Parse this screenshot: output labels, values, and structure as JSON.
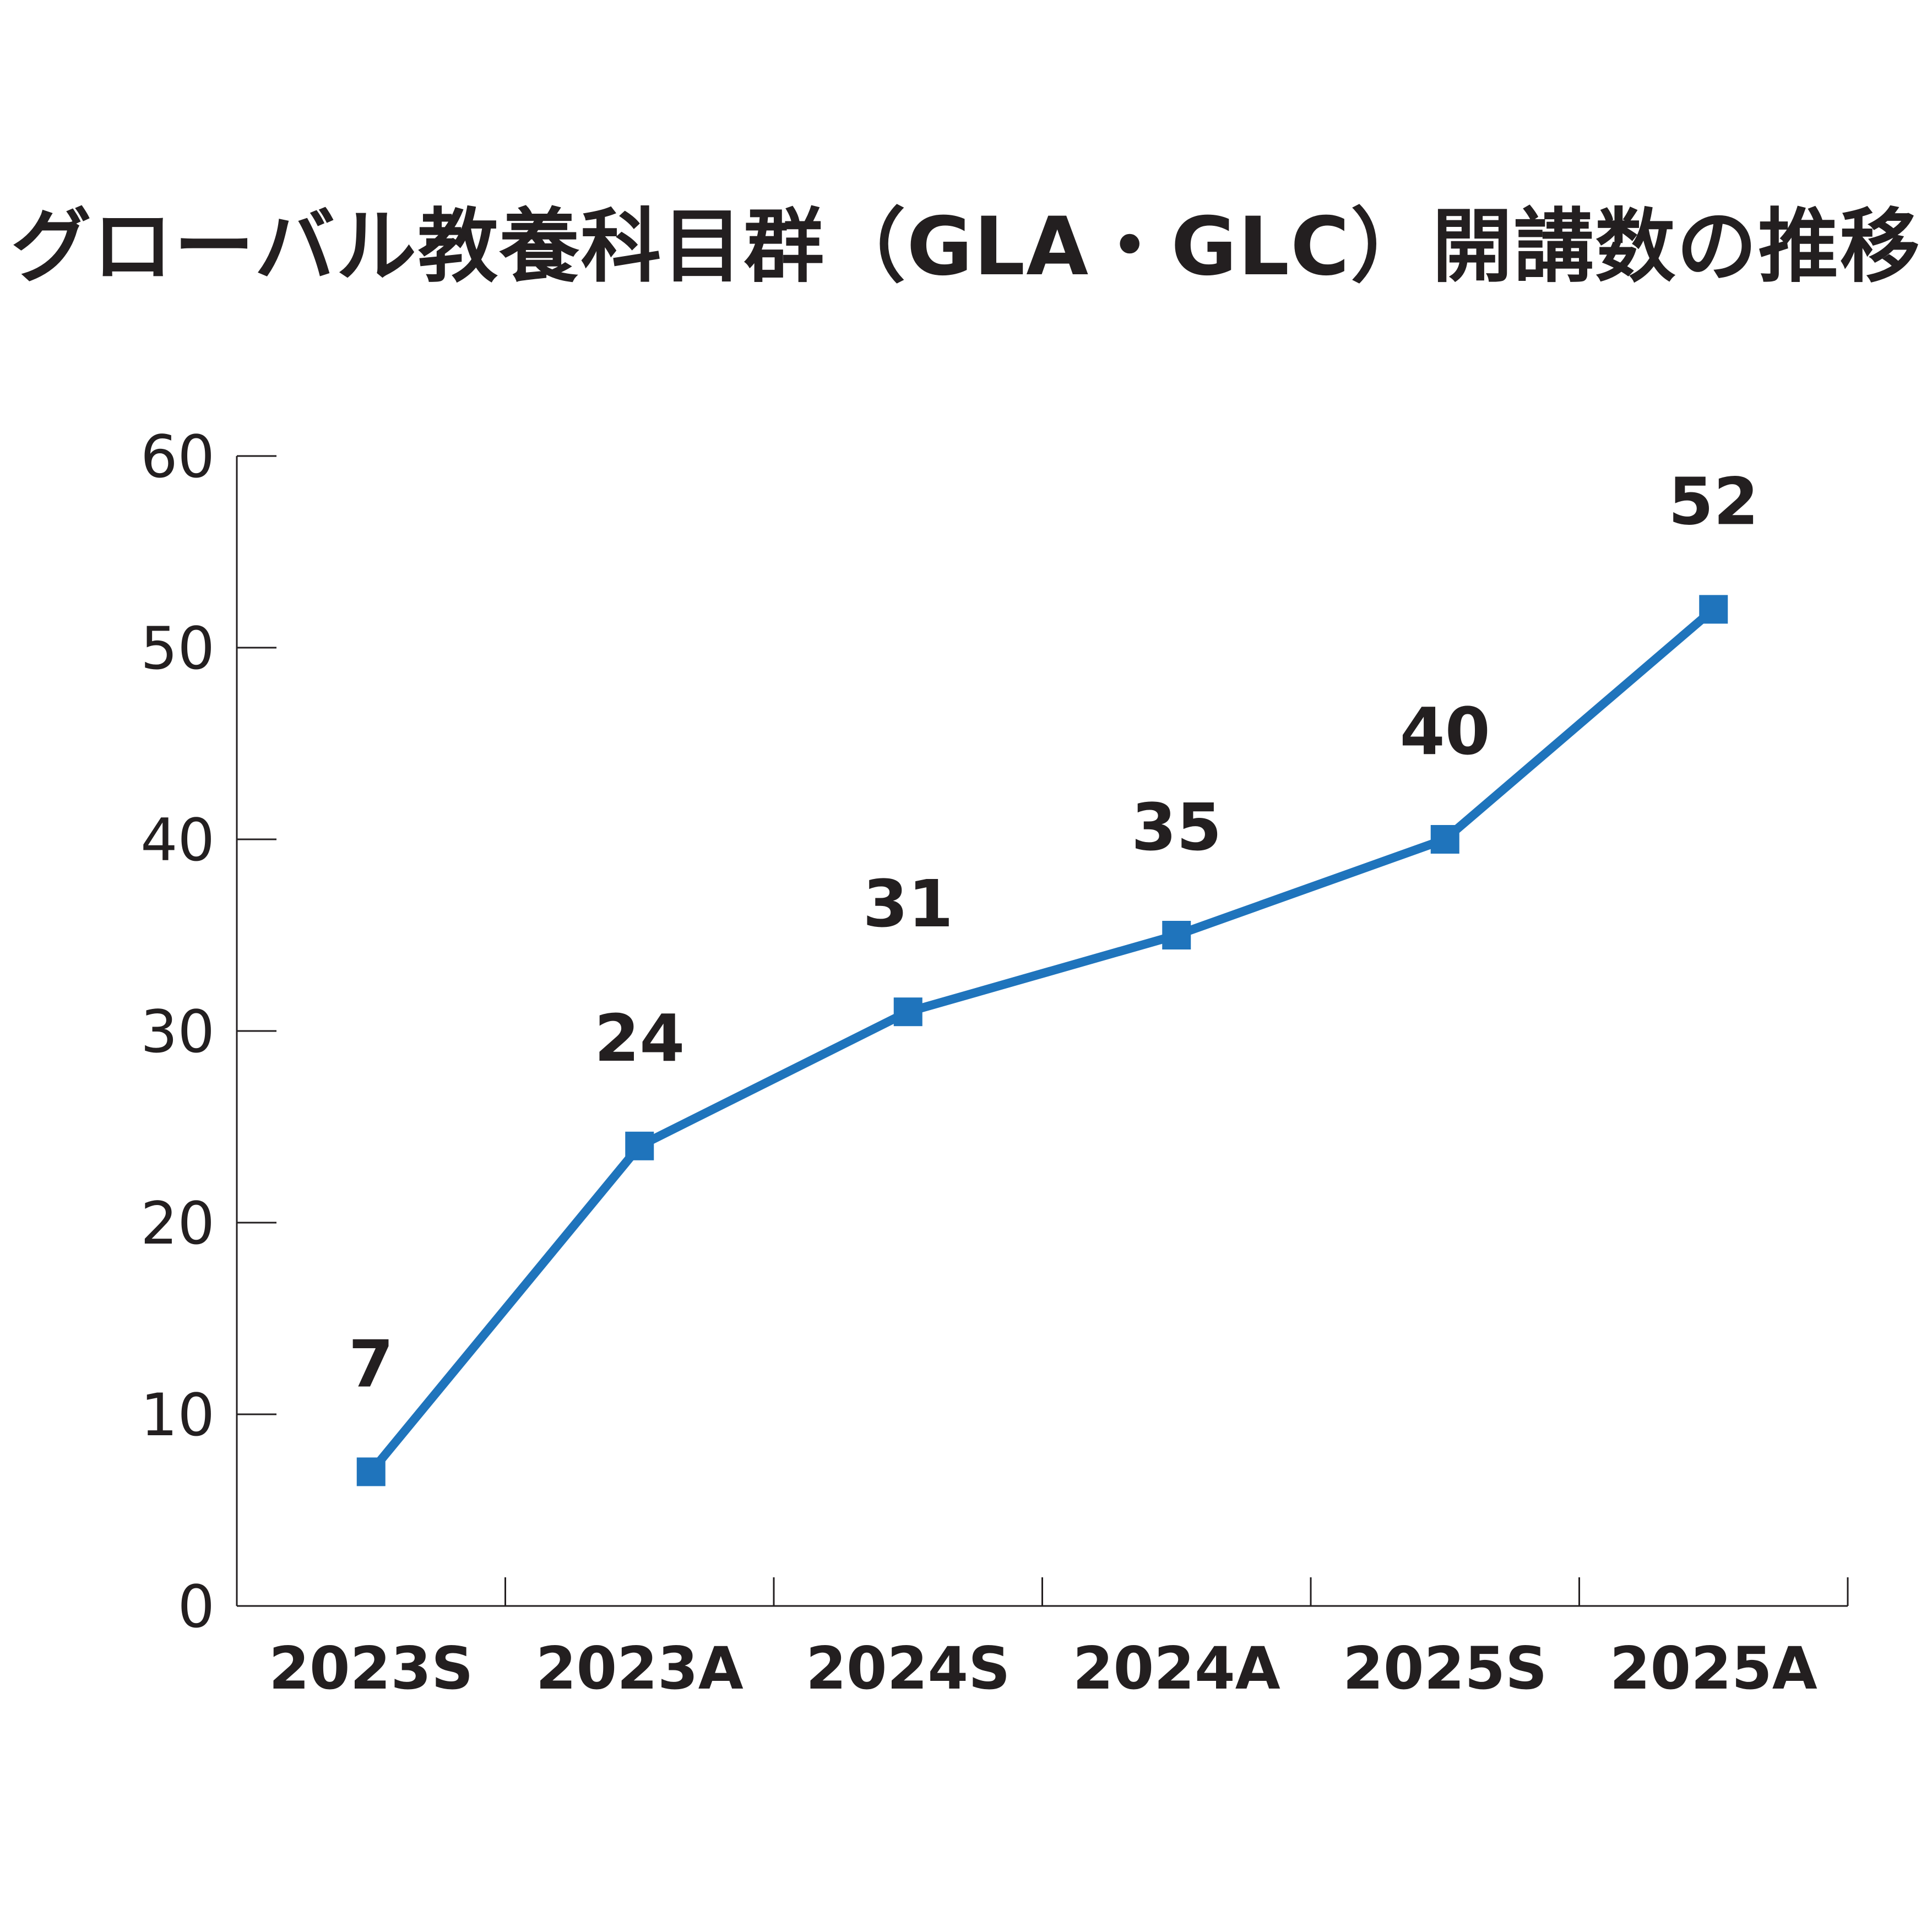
{
  "chart_data": {
    "type": "line",
    "title": "グローバル教養科目群（GLA・GLC）開講数の推移",
    "xlabel": "",
    "ylabel": "",
    "categories": [
      "2023S",
      "2023A",
      "2024S",
      "2024A",
      "2025S",
      "2025A"
    ],
    "series": [
      {
        "values": [
          7,
          24,
          31,
          35,
          40,
          52
        ]
      }
    ],
    "ylim": [
      0,
      60
    ],
    "yticks": [
      "0",
      "10",
      "20",
      "30",
      "40",
      "50",
      "60"
    ],
    "grid": false,
    "legend": "none",
    "data_labels": true,
    "colors": {
      "series": "#1f74bc",
      "text": "#231f20"
    }
  }
}
